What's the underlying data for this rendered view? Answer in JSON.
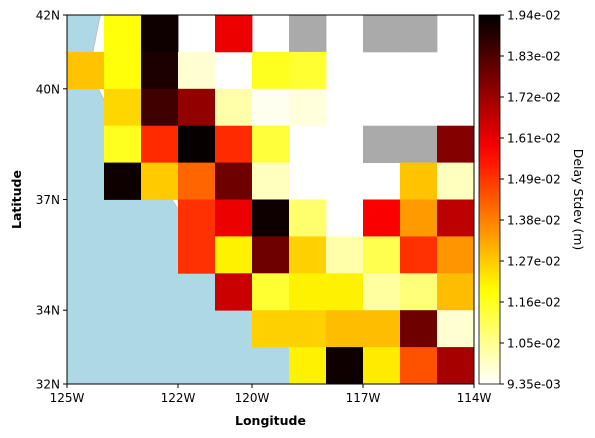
{
  "chart_data": {
    "type": "heatmap",
    "xlabel": "Longitude",
    "ylabel": "Latitude",
    "xlim": [
      -125,
      -114
    ],
    "ylim": [
      32,
      42
    ],
    "cell_size_deg": 1,
    "x_ticks": [
      {
        "value": -125,
        "label": "125W"
      },
      {
        "value": -122,
        "label": "122W"
      },
      {
        "value": -120,
        "label": "120W"
      },
      {
        "value": -117,
        "label": "117W"
      },
      {
        "value": -114,
        "label": "114W"
      }
    ],
    "y_ticks": [
      {
        "value": 32,
        "label": "32N"
      },
      {
        "value": 34,
        "label": "34N"
      },
      {
        "value": 37,
        "label": "37N"
      },
      {
        "value": 40,
        "label": "40N"
      },
      {
        "value": 42,
        "label": "42N"
      }
    ],
    "colorbar": {
      "label": "Delay Stdev (m)",
      "colormap": "hot_r",
      "vmin": 0.00935,
      "vmax": 0.0194,
      "tick_labels": [
        "9.35e-03",
        "1.05e-02",
        "1.16e-02",
        "1.27e-02",
        "1.38e-02",
        "1.49e-02",
        "1.61e-02",
        "1.72e-02",
        "1.83e-02",
        "1.94e-02"
      ]
    },
    "ocean_color": "#add8e6",
    "nodata_color": "#aaaaaa",
    "grid": "none",
    "value_grid_note": "rows ordered north to south starting at latitude 42N; columns ordered west to east starting at longitude 125W; null = blank, 'nd' = grey no-data cell",
    "cells": [
      [
        null,
        0.0118,
        0.0192,
        null,
        0.016,
        null,
        "nd",
        null,
        "nd",
        "nd",
        null
      ],
      [
        0.0128,
        0.0118,
        0.019,
        0.0098,
        null,
        0.0116,
        0.0114,
        null,
        null,
        null,
        null
      ],
      [
        null,
        0.0125,
        0.0185,
        0.0173,
        0.0102,
        0.0095,
        0.0097,
        null,
        null,
        null,
        null
      ],
      [
        null,
        0.0116,
        0.0151,
        0.0193,
        0.0151,
        0.0113,
        null,
        null,
        "nd",
        "nd",
        0.0175
      ],
      [
        null,
        0.0192,
        0.0127,
        0.0142,
        0.0178,
        0.01,
        null,
        null,
        null,
        0.0128,
        0.01
      ],
      [
        null,
        null,
        null,
        0.015,
        0.016,
        0.0192,
        0.0108,
        null,
        0.0158,
        0.0134,
        0.0167
      ],
      [
        null,
        null,
        null,
        0.015,
        0.0121,
        0.0178,
        0.0126,
        0.0102,
        0.0111,
        0.015,
        0.0135
      ],
      [
        null,
        null,
        null,
        null,
        0.0165,
        0.0114,
        0.0121,
        0.0121,
        0.0103,
        0.0107,
        0.0129
      ],
      [
        null,
        null,
        null,
        null,
        null,
        0.0126,
        0.0126,
        0.0129,
        0.0129,
        0.0178,
        0.0098
      ],
      [
        null,
        null,
        null,
        null,
        null,
        null,
        0.0121,
        0.0192,
        0.0122,
        0.0145,
        0.017
      ]
    ]
  }
}
